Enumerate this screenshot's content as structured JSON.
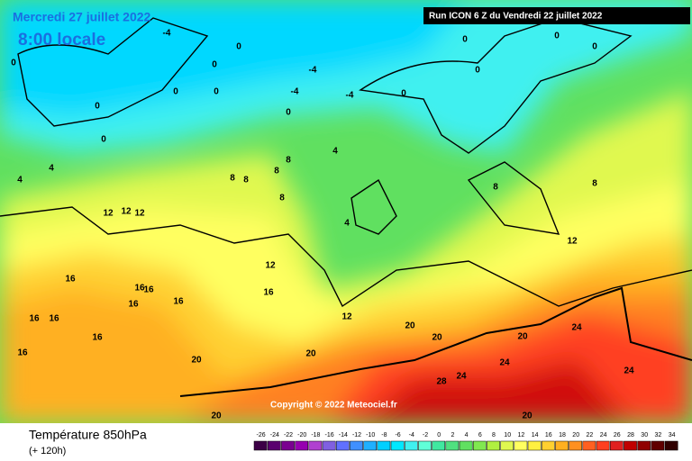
{
  "header": {
    "date": "Mercredi 27 juillet 2022",
    "time": "8:00 locale",
    "run": "Run ICON 6 Z du Vendredi 22 juillet 2022"
  },
  "copyright": "Copyright © 2022 Meteociel.fr",
  "footer": {
    "title": "Température 850hPa",
    "lead": "(+ 120h)"
  },
  "legend": {
    "items": [
      {
        "label": "-26",
        "color": "#3c0046"
      },
      {
        "label": "-24",
        "color": "#5a006e"
      },
      {
        "label": "-22",
        "color": "#7a0090"
      },
      {
        "label": "-20",
        "color": "#9600b0"
      },
      {
        "label": "-18",
        "color": "#b040d0"
      },
      {
        "label": "-16",
        "color": "#8060e0"
      },
      {
        "label": "-14",
        "color": "#6070ff"
      },
      {
        "label": "-12",
        "color": "#4090ff"
      },
      {
        "label": "-10",
        "color": "#20b0ff"
      },
      {
        "label": "-8",
        "color": "#00d0ff"
      },
      {
        "label": "-6",
        "color": "#00e8ff"
      },
      {
        "label": "-4",
        "color": "#40f0f0"
      },
      {
        "label": "-2",
        "color": "#60ffd8"
      },
      {
        "label": "0",
        "color": "#40e8a0"
      },
      {
        "label": "2",
        "color": "#50e080"
      },
      {
        "label": "4",
        "color": "#60e060"
      },
      {
        "label": "6",
        "color": "#80e850"
      },
      {
        "label": "8",
        "color": "#b0f040"
      },
      {
        "label": "10",
        "color": "#e0f850"
      },
      {
        "label": "12",
        "color": "#ffff60"
      },
      {
        "label": "14",
        "color": "#fff040"
      },
      {
        "label": "16",
        "color": "#ffd030"
      },
      {
        "label": "18",
        "color": "#ffb020"
      },
      {
        "label": "20",
        "color": "#ff9020"
      },
      {
        "label": "22",
        "color": "#ff6020"
      },
      {
        "label": "24",
        "color": "#ff4020"
      },
      {
        "label": "26",
        "color": "#e02020"
      },
      {
        "label": "28",
        "color": "#c00000"
      },
      {
        "label": "30",
        "color": "#900000"
      },
      {
        "label": "32",
        "color": "#600000"
      },
      {
        "label": "34",
        "color": "#300000"
      }
    ]
  },
  "map_labels": [
    -4,
    0,
    0,
    0,
    0,
    0,
    -4,
    -4,
    -4,
    0,
    0,
    0,
    0,
    0,
    0,
    0,
    0,
    4,
    4,
    4,
    4,
    8,
    8,
    8,
    8,
    8,
    8,
    8,
    12,
    12,
    12,
    12,
    12,
    12,
    16,
    16,
    16,
    16,
    16,
    16,
    16,
    16,
    16,
    16,
    20,
    20,
    20,
    20,
    20,
    24,
    24,
    24,
    24,
    28,
    20,
    20
  ]
}
